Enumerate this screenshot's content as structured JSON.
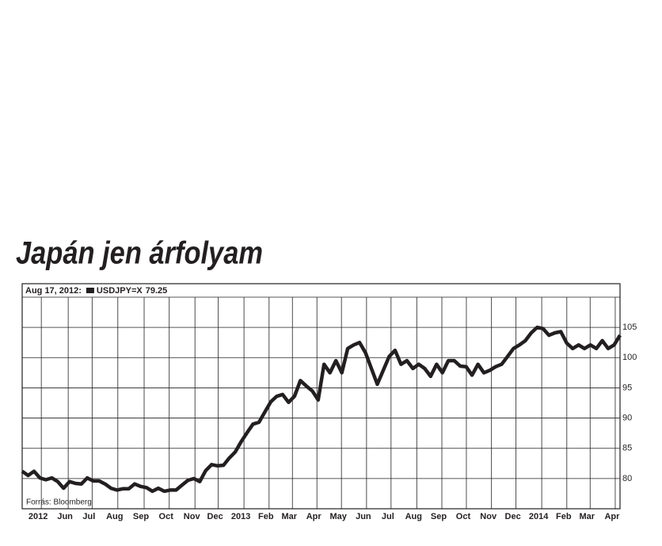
{
  "chart_data": {
    "type": "line",
    "title": "Japán jen árfolyam",
    "cursor_label": "Aug 17, 2012:",
    "cursor_value": 79.25,
    "source": "Forrás: Bloomberg",
    "series": [
      {
        "name": "USDJPY=X",
        "color": "#231f20",
        "values": [
          81.2,
          80.5,
          81.2,
          80.1,
          79.8,
          80.1,
          79.5,
          78.4,
          79.5,
          79.2,
          79.1,
          80.1,
          79.6,
          79.6,
          79.1,
          78.4,
          78.1,
          78.3,
          78.3,
          79.1,
          78.7,
          78.5,
          77.9,
          78.4,
          77.9,
          78.1,
          78.1,
          78.9,
          79.7,
          80.0,
          79.5,
          81.3,
          82.3,
          82.1,
          82.2,
          83.4,
          84.4,
          86.1,
          87.6,
          89.0,
          89.3,
          91.0,
          92.7,
          93.6,
          93.9,
          92.6,
          93.6,
          96.2,
          95.3,
          94.5,
          93.0,
          98.9,
          97.5,
          99.5,
          97.5,
          101.5,
          102.1,
          102.5,
          100.8,
          98.2,
          95.6,
          97.9,
          100.2,
          101.2,
          98.9,
          99.5,
          98.2,
          98.9,
          98.2,
          96.9,
          98.9,
          97.5,
          99.5,
          99.5,
          98.6,
          98.5,
          97.1,
          98.9,
          97.5,
          97.9,
          98.5,
          98.9,
          100.2,
          101.5,
          102.1,
          102.8,
          104.1,
          105.0,
          104.8,
          103.7,
          104.1,
          104.3,
          102.4,
          101.5,
          102.1,
          101.5,
          102.1,
          101.5,
          102.8,
          101.5,
          102.1,
          103.7
        ]
      }
    ],
    "xlim": [
      0,
      100
    ],
    "xticks": [
      {
        "value": 3.2,
        "label": "2012"
      },
      {
        "value": 7.7,
        "label": "Jun"
      },
      {
        "value": 11.7,
        "label": "Jul"
      },
      {
        "value": 16.0,
        "label": "Aug"
      },
      {
        "value": 20.4,
        "label": "Sep"
      },
      {
        "value": 24.6,
        "label": "Oct"
      },
      {
        "value": 28.9,
        "label": "Nov"
      },
      {
        "value": 32.8,
        "label": "Dec"
      },
      {
        "value": 37.1,
        "label": "2013"
      },
      {
        "value": 41.3,
        "label": "Feb"
      },
      {
        "value": 45.2,
        "label": "Mar"
      },
      {
        "value": 49.3,
        "label": "Apr"
      },
      {
        "value": 53.4,
        "label": "May"
      },
      {
        "value": 57.6,
        "label": "Jun"
      },
      {
        "value": 61.7,
        "label": "Jul"
      },
      {
        "value": 66.0,
        "label": "Aug"
      },
      {
        "value": 70.2,
        "label": "Sep"
      },
      {
        "value": 74.3,
        "label": "Oct"
      },
      {
        "value": 78.5,
        "label": "Nov"
      },
      {
        "value": 82.6,
        "label": "Dec"
      },
      {
        "value": 86.9,
        "label": "2014"
      },
      {
        "value": 91.1,
        "label": "Feb"
      },
      {
        "value": 95.0,
        "label": "Mar"
      },
      {
        "value": 99.2,
        "label": "Apr"
      }
    ],
    "ylim": [
      75,
      110
    ],
    "yticks": [
      80,
      85,
      90,
      95,
      100,
      105
    ],
    "grid": true
  }
}
